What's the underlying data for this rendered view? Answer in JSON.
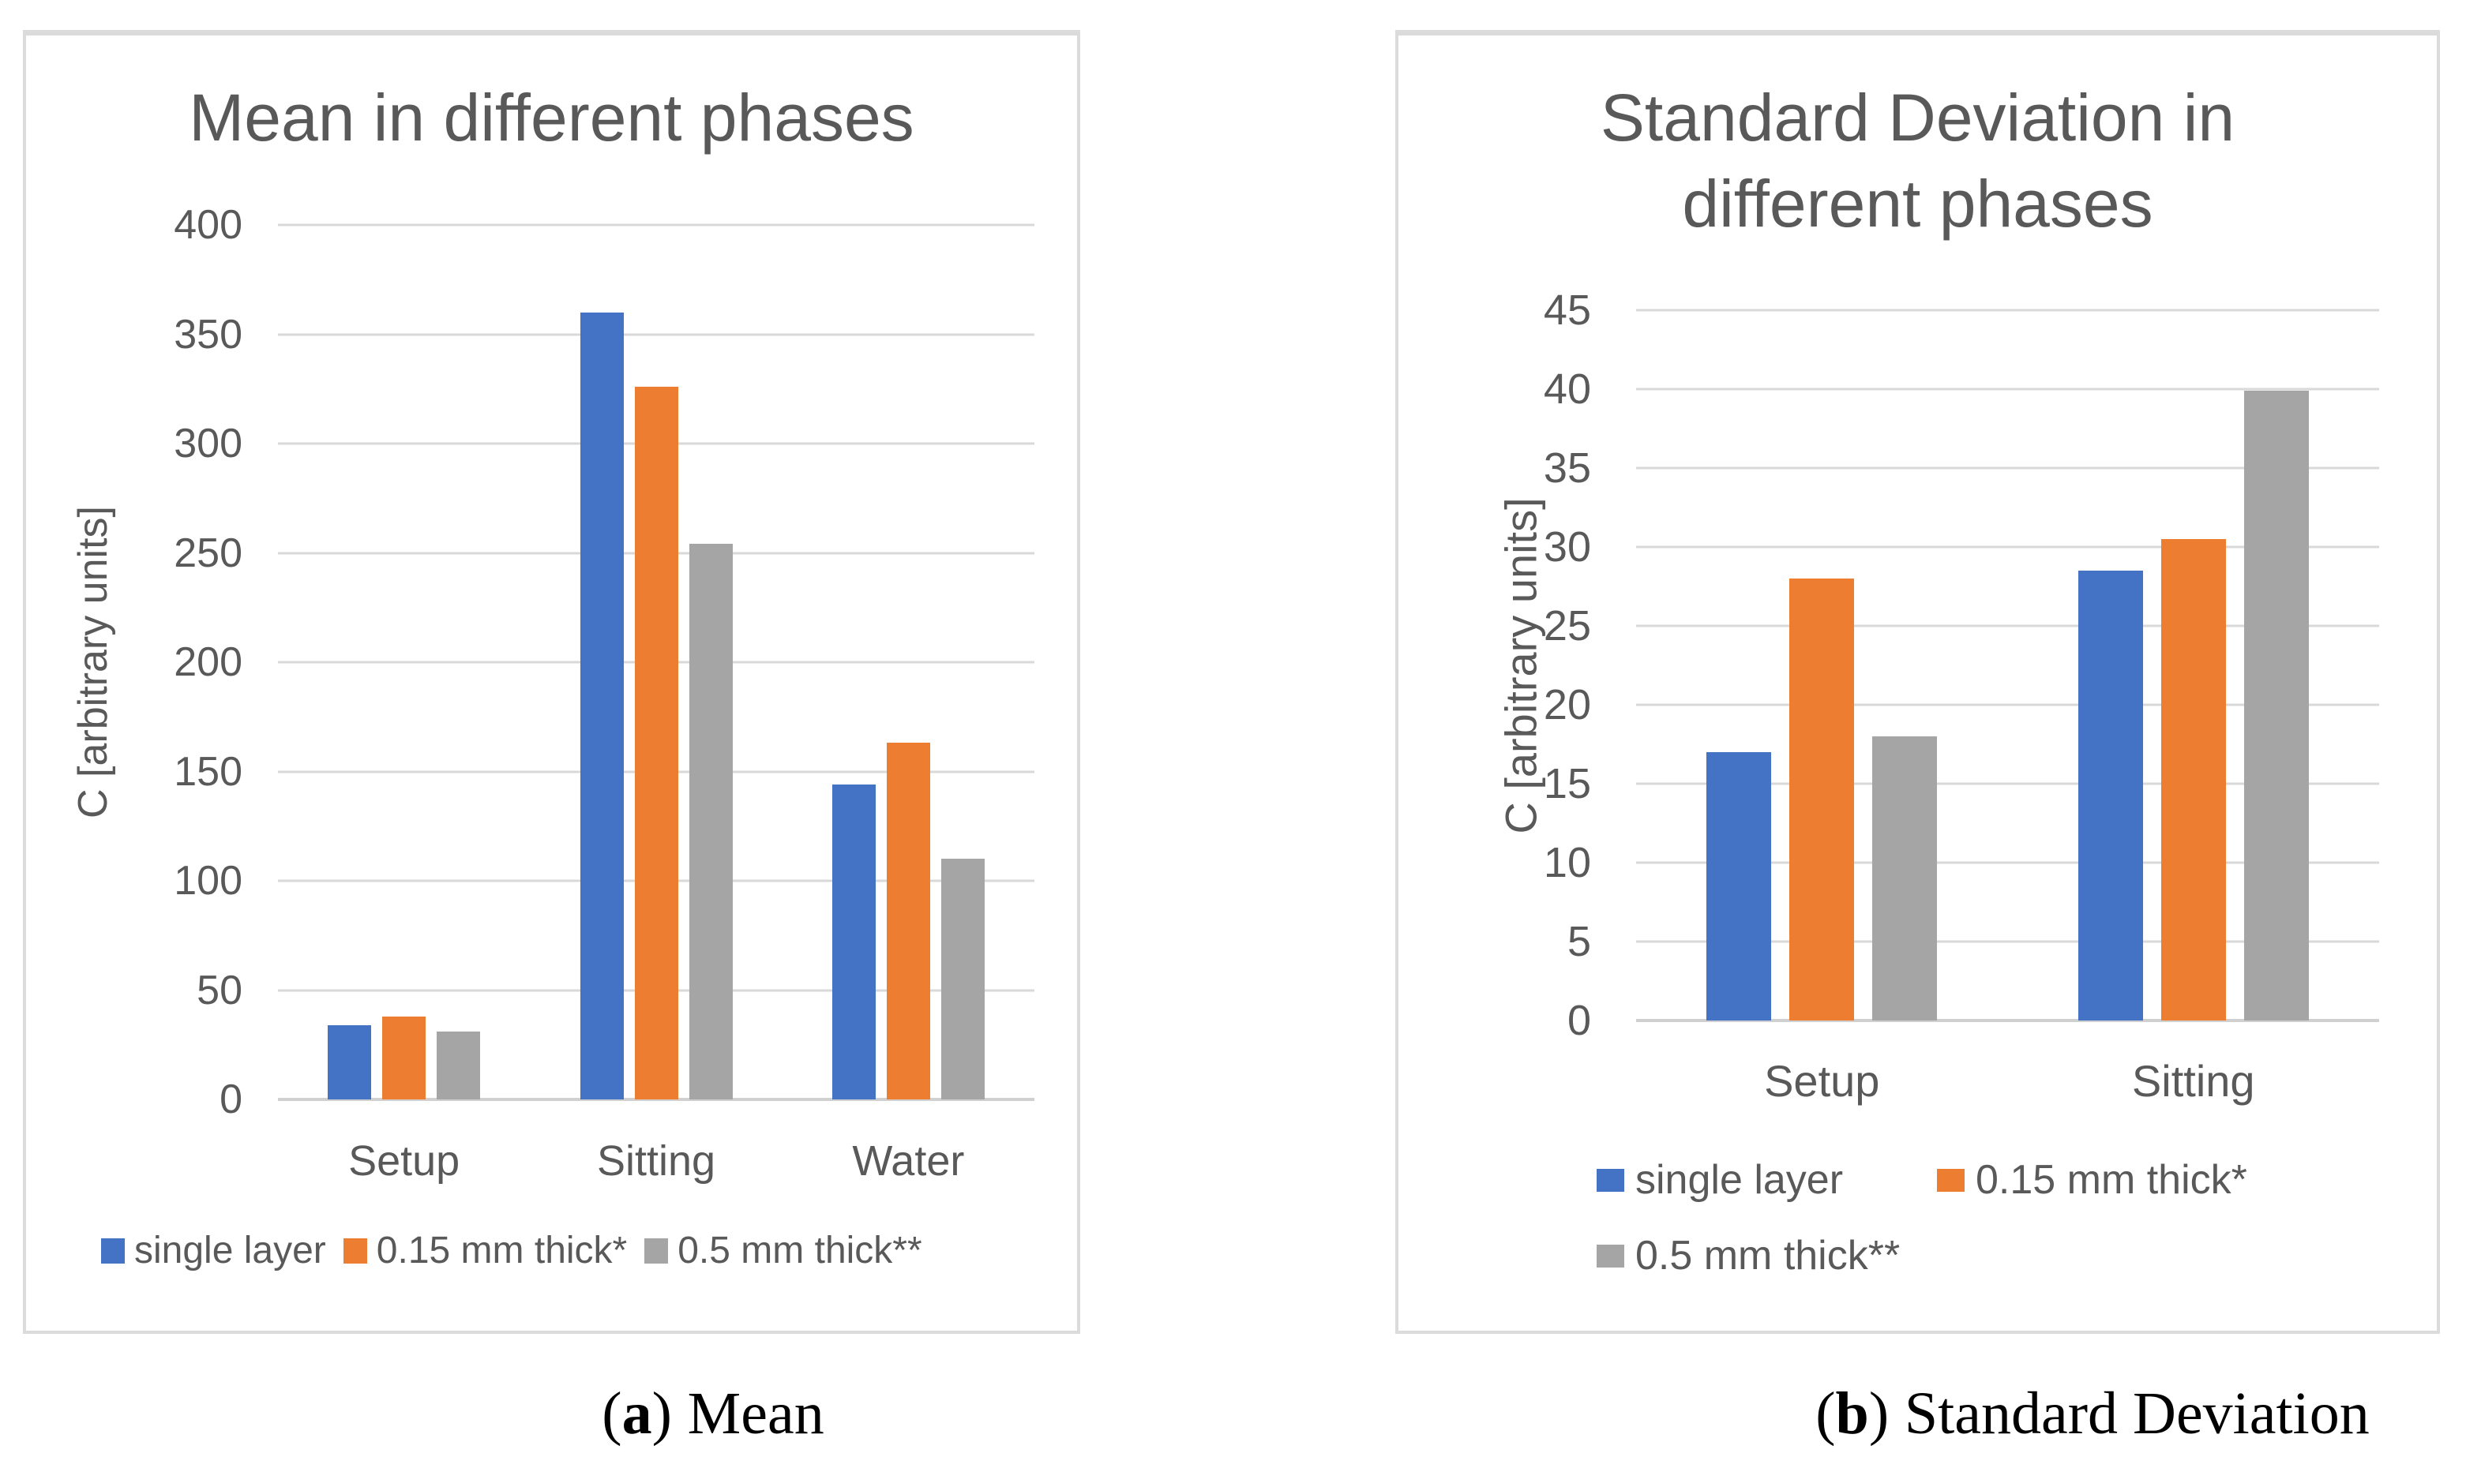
{
  "figure": {
    "captions": [
      {
        "open": "(",
        "letter": "a",
        "close": ")",
        "text": "Mean"
      },
      {
        "open": "(",
        "letter": "b",
        "close": ")",
        "text": "Standard Deviation"
      }
    ]
  },
  "colors": {
    "text": "#595959",
    "gridline": "#d9d9d9",
    "axis_line": "#d0d0d0",
    "panel_border": "#dbdbdb",
    "series_blue": "#4472C4",
    "series_orange": "#ED7D31",
    "series_gray": "#A5A5A5"
  },
  "chart_data": [
    {
      "type": "bar",
      "title": "Mean in different phases",
      "ylabel": "C [arbitrary units]",
      "xlabel": "",
      "categories": [
        "Setup",
        "Sitting",
        "Water"
      ],
      "series": [
        {
          "name": "single layer",
          "color": "#4472C4",
          "values": [
            34,
            360,
            144
          ]
        },
        {
          "name": "0.15 mm thick*",
          "color": "#ED7D31",
          "values": [
            38,
            326,
            163
          ]
        },
        {
          "name": "0.5 mm thick**",
          "color": "#A5A5A5",
          "values": [
            31,
            254,
            110
          ]
        }
      ],
      "ylim": [
        0,
        400
      ],
      "yticks": [
        "0",
        "50",
        "100",
        "150",
        "200",
        "250",
        "300",
        "350",
        "400"
      ],
      "grid": true,
      "legend_position": "bottom",
      "legend_rows": 1
    },
    {
      "type": "bar",
      "title": "Standard Deviation in\ndifferent phases",
      "ylabel": "C [arbitrary units]",
      "xlabel": "",
      "categories": [
        "Setup",
        "Sitting"
      ],
      "series": [
        {
          "name": "single layer",
          "color": "#4472C4",
          "values": [
            17,
            28.5
          ]
        },
        {
          "name": "0.15 mm thick*",
          "color": "#ED7D31",
          "values": [
            28,
            30.5
          ]
        },
        {
          "name": "0.5 mm thick**",
          "color": "#A5A5A5",
          "values": [
            18,
            39.9
          ]
        }
      ],
      "ylim": [
        0,
        45
      ],
      "yticks": [
        "0",
        "5",
        "10",
        "15",
        "20",
        "25",
        "30",
        "35",
        "40",
        "45"
      ],
      "grid": true,
      "legend_position": "bottom",
      "legend_rows": 2
    }
  ]
}
